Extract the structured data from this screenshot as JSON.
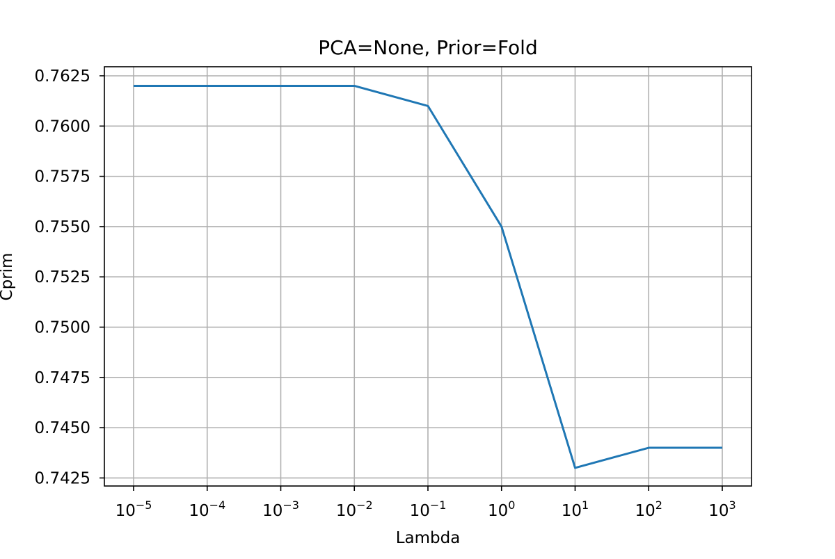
{
  "chart_data": {
    "type": "line",
    "title": "PCA=None, Prior=Fold",
    "xlabel": "Lambda",
    "ylabel": "Cprim",
    "x_scale": "log",
    "x": [
      1e-05,
      0.0001,
      0.001,
      0.01,
      0.1,
      1,
      10,
      100,
      1000
    ],
    "series": [
      {
        "values": [
          0.762,
          0.762,
          0.762,
          0.762,
          0.761,
          0.755,
          0.743,
          0.744,
          0.744
        ],
        "color": "#1f77b4"
      }
    ],
    "x_ticks": [
      {
        "base": "10",
        "exp": "−5"
      },
      {
        "base": "10",
        "exp": "−4"
      },
      {
        "base": "10",
        "exp": "−3"
      },
      {
        "base": "10",
        "exp": "−2"
      },
      {
        "base": "10",
        "exp": "−1"
      },
      {
        "base": "10",
        "exp": "0"
      },
      {
        "base": "10",
        "exp": "1"
      },
      {
        "base": "10",
        "exp": "2"
      },
      {
        "base": "10",
        "exp": "3"
      }
    ],
    "y_ticks": [
      "0.7425",
      "0.7450",
      "0.7475",
      "0.7500",
      "0.7525",
      "0.7550",
      "0.7575",
      "0.7600",
      "0.7625"
    ],
    "y_tick_values": [
      0.7425,
      0.745,
      0.7475,
      0.75,
      0.7525,
      0.755,
      0.7575,
      0.76,
      0.7625
    ],
    "ylim": [
      0.7421,
      0.76295
    ],
    "grid": true,
    "legend": "none"
  }
}
